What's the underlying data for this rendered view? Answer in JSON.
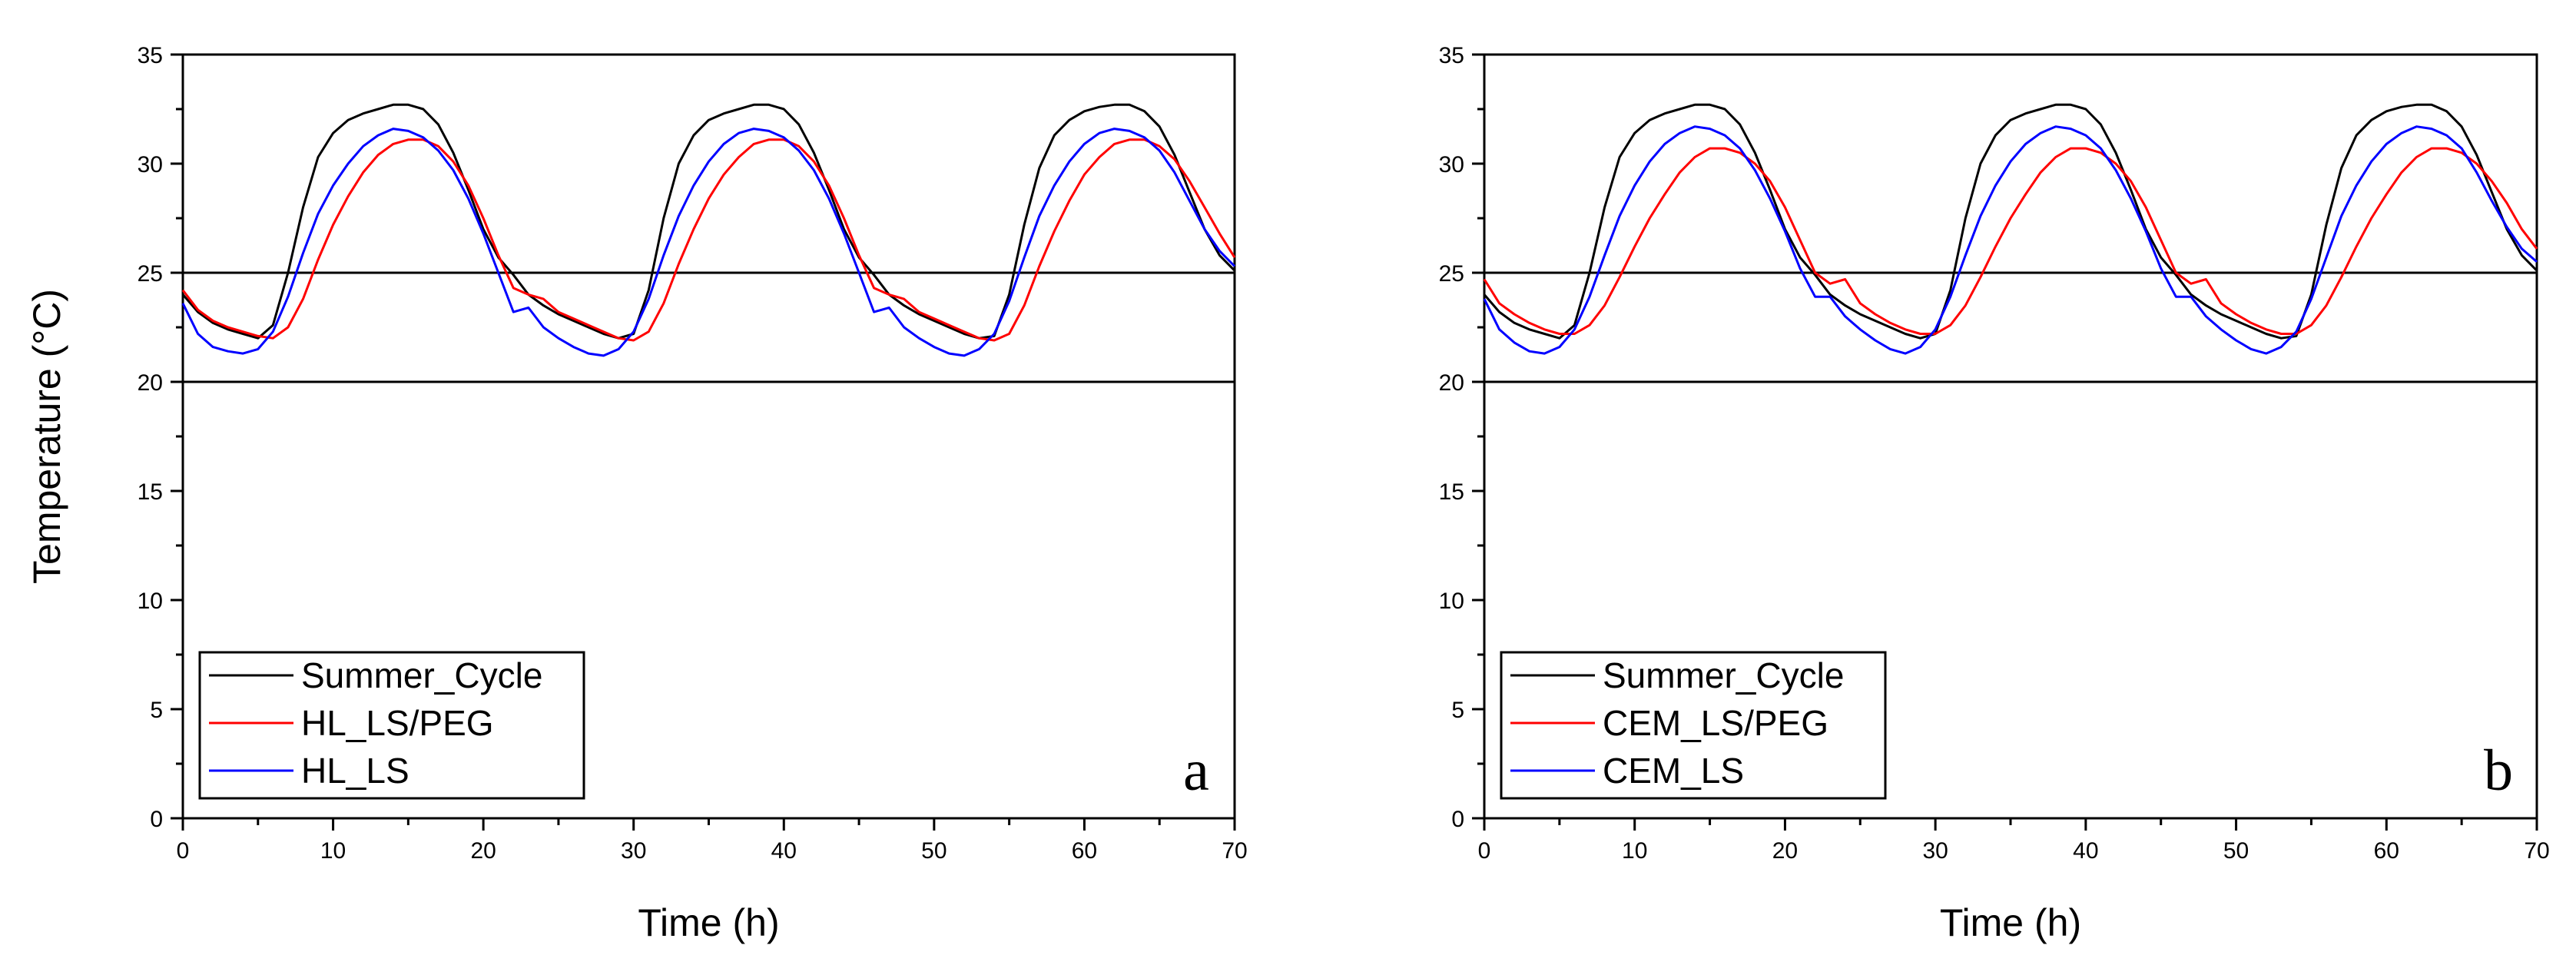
{
  "chart_data": [
    {
      "type": "line",
      "panel_label": "a",
      "xlabel": "Time (h)",
      "ylabel": "Temperature (°C)",
      "xlim": [
        0,
        70
      ],
      "ylim": [
        0,
        35
      ],
      "xticks": [
        0,
        10,
        20,
        30,
        40,
        50,
        60,
        70
      ],
      "yticks": [
        0,
        5,
        10,
        15,
        20,
        25,
        30,
        35
      ],
      "grid": false,
      "legend_position": "bottom-left",
      "reference_lines": [
        {
          "y": 20,
          "color": "#000000"
        },
        {
          "y": 25,
          "color": "#000000"
        }
      ],
      "series": [
        {
          "name": "Summer_Cycle",
          "color": "#000000",
          "x": [
            0,
            1,
            2,
            3,
            4,
            5,
            6,
            7,
            8,
            9,
            10,
            11,
            12,
            13,
            14,
            15,
            16,
            17,
            18,
            19,
            20,
            21,
            22,
            23,
            24,
            25,
            26,
            27,
            28,
            29,
            30,
            31,
            32,
            33,
            34,
            35,
            36,
            37,
            38,
            39,
            40,
            41,
            42,
            43,
            44,
            45,
            46,
            47,
            48,
            49,
            50,
            51,
            52,
            53,
            54,
            55,
            56,
            57,
            58,
            59,
            60,
            61,
            62,
            63,
            64,
            65,
            66,
            67,
            68,
            69,
            70
          ],
          "y": [
            24.0,
            23.2,
            22.7,
            22.4,
            22.2,
            22.0,
            22.6,
            25.0,
            28.0,
            30.3,
            31.4,
            32.0,
            32.3,
            32.5,
            32.7,
            32.7,
            32.5,
            31.8,
            30.5,
            28.8,
            27.0,
            25.7,
            24.9,
            24.0,
            23.5,
            23.1,
            22.8,
            22.5,
            22.2,
            22.0,
            22.2,
            24.2,
            27.5,
            30.0,
            31.3,
            32.0,
            32.3,
            32.5,
            32.7,
            32.7,
            32.5,
            31.8,
            30.5,
            28.8,
            27.0,
            25.7,
            24.9,
            24.0,
            23.5,
            23.1,
            22.8,
            22.5,
            22.2,
            22.0,
            22.1,
            24.0,
            27.2,
            29.8,
            31.3,
            32.0,
            32.4,
            32.6,
            32.7,
            32.7,
            32.4,
            31.7,
            30.4,
            28.7,
            27.0,
            25.8,
            25.1
          ]
        },
        {
          "name": "HL_LS/PEG",
          "color": "#ff0000",
          "x": [
            0,
            1,
            2,
            3,
            4,
            5,
            6,
            7,
            8,
            9,
            10,
            11,
            12,
            13,
            14,
            15,
            16,
            17,
            18,
            19,
            20,
            21,
            22,
            23,
            24,
            25,
            26,
            27,
            28,
            29,
            30,
            31,
            32,
            33,
            34,
            35,
            36,
            37,
            38,
            39,
            40,
            41,
            42,
            43,
            44,
            45,
            46,
            47,
            48,
            49,
            50,
            51,
            52,
            53,
            54,
            55,
            56,
            57,
            58,
            59,
            60,
            61,
            62,
            63,
            64,
            65,
            66,
            67,
            68,
            69,
            70
          ],
          "y": [
            24.2,
            23.3,
            22.8,
            22.5,
            22.3,
            22.1,
            22.0,
            22.5,
            23.8,
            25.6,
            27.2,
            28.5,
            29.6,
            30.4,
            30.9,
            31.1,
            31.1,
            30.8,
            30.1,
            29.0,
            27.5,
            25.8,
            24.3,
            24.0,
            23.8,
            23.2,
            22.9,
            22.6,
            22.3,
            22.0,
            21.9,
            22.3,
            23.6,
            25.4,
            27.0,
            28.4,
            29.5,
            30.3,
            30.9,
            31.1,
            31.1,
            30.8,
            30.1,
            29.0,
            27.5,
            25.8,
            24.3,
            24.0,
            23.8,
            23.2,
            22.9,
            22.6,
            22.3,
            22.0,
            21.9,
            22.2,
            23.5,
            25.3,
            26.9,
            28.3,
            29.5,
            30.3,
            30.9,
            31.1,
            31.1,
            30.8,
            30.2,
            29.2,
            28.0,
            26.8,
            25.7
          ]
        },
        {
          "name": "HL_LS",
          "color": "#0000ff",
          "x": [
            0,
            1,
            2,
            3,
            4,
            5,
            6,
            7,
            8,
            9,
            10,
            11,
            12,
            13,
            14,
            15,
            16,
            17,
            18,
            19,
            20,
            21,
            22,
            23,
            24,
            25,
            26,
            27,
            28,
            29,
            30,
            31,
            32,
            33,
            34,
            35,
            36,
            37,
            38,
            39,
            40,
            41,
            42,
            43,
            44,
            45,
            46,
            47,
            48,
            49,
            50,
            51,
            52,
            53,
            54,
            55,
            56,
            57,
            58,
            59,
            60,
            61,
            62,
            63,
            64,
            65,
            66,
            67,
            68,
            69,
            70
          ],
          "y": [
            23.6,
            22.2,
            21.6,
            21.4,
            21.3,
            21.5,
            22.3,
            23.9,
            25.9,
            27.7,
            29.0,
            30.0,
            30.8,
            31.3,
            31.6,
            31.5,
            31.2,
            30.6,
            29.7,
            28.4,
            26.8,
            25.0,
            23.2,
            23.4,
            22.5,
            22.0,
            21.6,
            21.3,
            21.2,
            21.5,
            22.3,
            23.8,
            25.8,
            27.6,
            29.0,
            30.1,
            30.9,
            31.4,
            31.6,
            31.5,
            31.2,
            30.6,
            29.7,
            28.4,
            26.8,
            25.0,
            23.2,
            23.4,
            22.5,
            22.0,
            21.6,
            21.3,
            21.2,
            21.5,
            22.2,
            23.7,
            25.7,
            27.6,
            29.0,
            30.1,
            30.9,
            31.4,
            31.6,
            31.5,
            31.2,
            30.6,
            29.6,
            28.3,
            27.0,
            26.0,
            25.3
          ]
        }
      ]
    },
    {
      "type": "line",
      "panel_label": "b",
      "xlabel": "Time (h)",
      "ylabel": "",
      "xlim": [
        0,
        70
      ],
      "ylim": [
        0,
        35
      ],
      "xticks": [
        0,
        10,
        20,
        30,
        40,
        50,
        60,
        70
      ],
      "yticks": [
        0,
        5,
        10,
        15,
        20,
        25,
        30,
        35
      ],
      "grid": false,
      "legend_position": "bottom-left",
      "reference_lines": [
        {
          "y": 20,
          "color": "#000000"
        },
        {
          "y": 25,
          "color": "#000000"
        }
      ],
      "series": [
        {
          "name": "Summer_Cycle",
          "color": "#000000",
          "x": [
            0,
            1,
            2,
            3,
            4,
            5,
            6,
            7,
            8,
            9,
            10,
            11,
            12,
            13,
            14,
            15,
            16,
            17,
            18,
            19,
            20,
            21,
            22,
            23,
            24,
            25,
            26,
            27,
            28,
            29,
            30,
            31,
            32,
            33,
            34,
            35,
            36,
            37,
            38,
            39,
            40,
            41,
            42,
            43,
            44,
            45,
            46,
            47,
            48,
            49,
            50,
            51,
            52,
            53,
            54,
            55,
            56,
            57,
            58,
            59,
            60,
            61,
            62,
            63,
            64,
            65,
            66,
            67,
            68,
            69,
            70
          ],
          "y": [
            24.0,
            23.2,
            22.7,
            22.4,
            22.2,
            22.0,
            22.6,
            25.0,
            28.0,
            30.3,
            31.4,
            32.0,
            32.3,
            32.5,
            32.7,
            32.7,
            32.5,
            31.8,
            30.5,
            28.8,
            27.0,
            25.7,
            24.9,
            24.0,
            23.5,
            23.1,
            22.8,
            22.5,
            22.2,
            22.0,
            22.2,
            24.2,
            27.5,
            30.0,
            31.3,
            32.0,
            32.3,
            32.5,
            32.7,
            32.7,
            32.5,
            31.8,
            30.5,
            28.8,
            27.0,
            25.7,
            24.9,
            24.0,
            23.5,
            23.1,
            22.8,
            22.5,
            22.2,
            22.0,
            22.1,
            24.0,
            27.2,
            29.8,
            31.3,
            32.0,
            32.4,
            32.6,
            32.7,
            32.7,
            32.4,
            31.7,
            30.4,
            28.7,
            27.0,
            25.8,
            25.1
          ]
        },
        {
          "name": "CEM_LS/PEG",
          "color": "#ff0000",
          "x": [
            0,
            1,
            2,
            3,
            4,
            5,
            6,
            7,
            8,
            9,
            10,
            11,
            12,
            13,
            14,
            15,
            16,
            17,
            18,
            19,
            20,
            21,
            22,
            23,
            24,
            25,
            26,
            27,
            28,
            29,
            30,
            31,
            32,
            33,
            34,
            35,
            36,
            37,
            38,
            39,
            40,
            41,
            42,
            43,
            44,
            45,
            46,
            47,
            48,
            49,
            50,
            51,
            52,
            53,
            54,
            55,
            56,
            57,
            58,
            59,
            60,
            61,
            62,
            63,
            64,
            65,
            66,
            67,
            68,
            69,
            70
          ],
          "y": [
            24.7,
            23.6,
            23.1,
            22.7,
            22.4,
            22.2,
            22.2,
            22.6,
            23.5,
            24.8,
            26.2,
            27.5,
            28.6,
            29.6,
            30.3,
            30.7,
            30.7,
            30.5,
            30.0,
            29.2,
            28.0,
            26.5,
            25.0,
            24.5,
            24.7,
            23.6,
            23.1,
            22.7,
            22.4,
            22.2,
            22.2,
            22.6,
            23.5,
            24.8,
            26.2,
            27.5,
            28.6,
            29.6,
            30.3,
            30.7,
            30.7,
            30.5,
            30.0,
            29.2,
            28.0,
            26.5,
            25.0,
            24.5,
            24.7,
            23.6,
            23.1,
            22.7,
            22.4,
            22.2,
            22.2,
            22.6,
            23.5,
            24.8,
            26.2,
            27.5,
            28.6,
            29.6,
            30.3,
            30.7,
            30.7,
            30.5,
            30.0,
            29.2,
            28.2,
            27.0,
            26.1
          ]
        },
        {
          "name": "CEM_LS",
          "color": "#0000ff",
          "x": [
            0,
            1,
            2,
            3,
            4,
            5,
            6,
            7,
            8,
            9,
            10,
            11,
            12,
            13,
            14,
            15,
            16,
            17,
            18,
            19,
            20,
            21,
            22,
            23,
            24,
            25,
            26,
            27,
            28,
            29,
            30,
            31,
            32,
            33,
            34,
            35,
            36,
            37,
            38,
            39,
            40,
            41,
            42,
            43,
            44,
            45,
            46,
            47,
            48,
            49,
            50,
            51,
            52,
            53,
            54,
            55,
            56,
            57,
            58,
            59,
            60,
            61,
            62,
            63,
            64,
            65,
            66,
            67,
            68,
            69,
            70
          ],
          "y": [
            23.8,
            22.4,
            21.8,
            21.4,
            21.3,
            21.6,
            22.4,
            23.9,
            25.8,
            27.6,
            29.0,
            30.1,
            30.9,
            31.4,
            31.7,
            31.6,
            31.3,
            30.7,
            29.7,
            28.4,
            26.9,
            25.2,
            23.9,
            23.9,
            23.0,
            22.4,
            21.9,
            21.5,
            21.3,
            21.6,
            22.4,
            23.9,
            25.8,
            27.6,
            29.0,
            30.1,
            30.9,
            31.4,
            31.7,
            31.6,
            31.3,
            30.7,
            29.7,
            28.4,
            26.9,
            25.2,
            23.9,
            23.9,
            23.0,
            22.4,
            21.9,
            21.5,
            21.3,
            21.6,
            22.3,
            23.8,
            25.7,
            27.6,
            29.0,
            30.1,
            30.9,
            31.4,
            31.7,
            31.6,
            31.3,
            30.7,
            29.6,
            28.3,
            27.1,
            26.1,
            25.5
          ]
        }
      ]
    }
  ]
}
